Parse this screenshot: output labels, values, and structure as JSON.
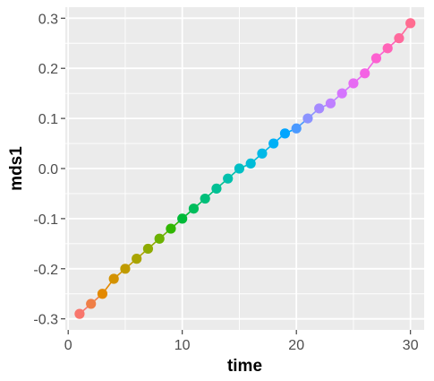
{
  "chart_data": {
    "type": "scatter",
    "title": "",
    "xlabel": "time",
    "ylabel": "mds1",
    "xlim": [
      0.5,
      30.5
    ],
    "ylim": [
      -0.3,
      0.3
    ],
    "x_ticks": [
      0,
      10,
      20,
      30
    ],
    "y_ticks": [
      -0.3,
      -0.2,
      -0.1,
      0.0,
      0.1,
      0.2,
      0.3
    ],
    "x_tick_labels": [
      "0",
      "10",
      "20",
      "30"
    ],
    "y_tick_labels": [
      "-0.3",
      "-0.2",
      "-0.1",
      "0.0",
      "0.1",
      "0.2",
      "0.3"
    ],
    "grid": true,
    "legend": "none",
    "connecting_line": true,
    "panel_background": "#ebebeb",
    "grid_color": "#ffffff",
    "points": [
      {
        "x": 1,
        "y": -0.29,
        "color": "#F8766D"
      },
      {
        "x": 2,
        "y": -0.27,
        "color": "#EF7F47"
      },
      {
        "x": 3,
        "y": -0.25,
        "color": "#E38900"
      },
      {
        "x": 4,
        "y": -0.22,
        "color": "#D39200"
      },
      {
        "x": 5,
        "y": -0.2,
        "color": "#C09B00"
      },
      {
        "x": 6,
        "y": -0.18,
        "color": "#A9A400"
      },
      {
        "x": 7,
        "y": -0.16,
        "color": "#8EAB00"
      },
      {
        "x": 8,
        "y": -0.14,
        "color": "#6BB100"
      },
      {
        "x": 9,
        "y": -0.12,
        "color": "#30B600"
      },
      {
        "x": 10,
        "y": -0.1,
        "color": "#00BA38"
      },
      {
        "x": 11,
        "y": -0.08,
        "color": "#00BD5C"
      },
      {
        "x": 12,
        "y": -0.06,
        "color": "#00BF7A"
      },
      {
        "x": 13,
        "y": -0.04,
        "color": "#00C094"
      },
      {
        "x": 14,
        "y": -0.02,
        "color": "#00C0AC"
      },
      {
        "x": 15,
        "y": 0.0,
        "color": "#00BFC4"
      },
      {
        "x": 16,
        "y": 0.01,
        "color": "#00BCD8"
      },
      {
        "x": 17,
        "y": 0.03,
        "color": "#00B8E7"
      },
      {
        "x": 18,
        "y": 0.05,
        "color": "#00B0F6"
      },
      {
        "x": 19,
        "y": 0.07,
        "color": "#00A5FF"
      },
      {
        "x": 20,
        "y": 0.08,
        "color": "#4A99FF"
      },
      {
        "x": 21,
        "y": 0.1,
        "color": "#8B93FF"
      },
      {
        "x": 22,
        "y": 0.12,
        "color": "#A58AFF"
      },
      {
        "x": 23,
        "y": 0.13,
        "color": "#BF80FF"
      },
      {
        "x": 24,
        "y": 0.15,
        "color": "#D575FE"
      },
      {
        "x": 25,
        "y": 0.17,
        "color": "#E76BF3"
      },
      {
        "x": 26,
        "y": 0.19,
        "color": "#F463E4"
      },
      {
        "x": 27,
        "y": 0.22,
        "color": "#FD61D1"
      },
      {
        "x": 28,
        "y": 0.24,
        "color": "#FF64B8"
      },
      {
        "x": 29,
        "y": 0.26,
        "color": "#FF699C"
      },
      {
        "x": 30,
        "y": 0.29,
        "color": "#FF6C90"
      }
    ]
  }
}
